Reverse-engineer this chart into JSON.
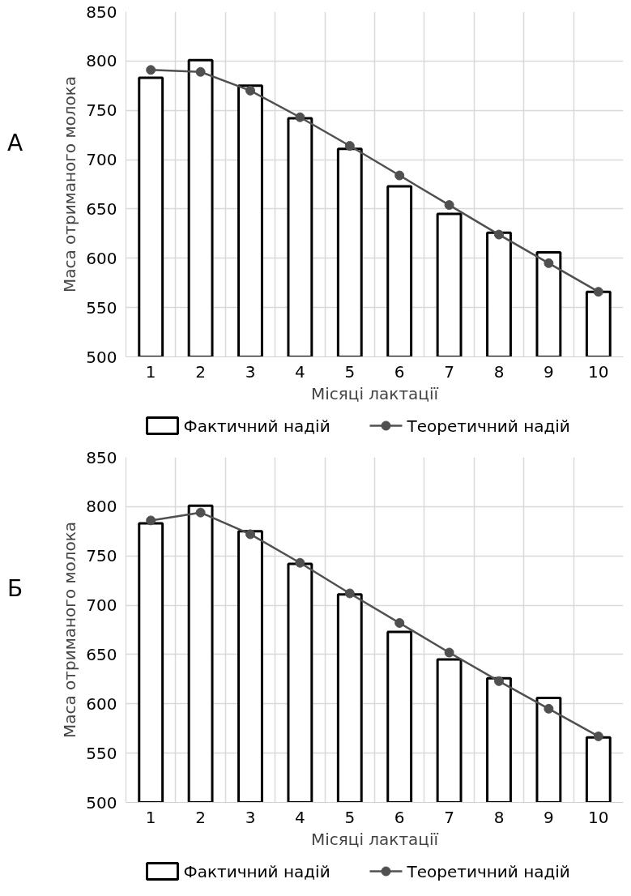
{
  "chart_data": [
    {
      "type": "bar",
      "title": "А",
      "xlabel": "Місяці лактації",
      "ylabel": "Маса отриманого молока",
      "categories": [
        "1",
        "2",
        "3",
        "4",
        "5",
        "6",
        "7",
        "8",
        "9",
        "10"
      ],
      "ylim": [
        500,
        850
      ],
      "yticks": [
        500,
        550,
        600,
        650,
        700,
        750,
        800,
        850
      ],
      "grid": true,
      "legend": "bottom",
      "series": [
        {
          "name": "Фактичний надій",
          "color": "#ffffff",
          "values": [
            783,
            801,
            775,
            742,
            711,
            673,
            645,
            626,
            606,
            566
          ]
        },
        {
          "name": "Теоретичний надій",
          "type": "line",
          "marker": "circle",
          "color": "#505050",
          "values": [
            791,
            789,
            770,
            743,
            714,
            684,
            654,
            624,
            595,
            566
          ]
        }
      ]
    },
    {
      "type": "bar",
      "title": "Б",
      "xlabel": "Місяці лактації",
      "ylabel": "Маса отриманого молока",
      "categories": [
        "1",
        "2",
        "3",
        "4",
        "5",
        "6",
        "7",
        "8",
        "9",
        "10"
      ],
      "ylim": [
        500,
        850
      ],
      "yticks": [
        500,
        550,
        600,
        650,
        700,
        750,
        800,
        850
      ],
      "grid": true,
      "legend": "bottom",
      "series": [
        {
          "name": "Фактичний надій",
          "color": "#ffffff",
          "values": [
            783,
            801,
            775,
            742,
            711,
            673,
            645,
            626,
            606,
            566
          ]
        },
        {
          "name": "Теоретичний надій",
          "type": "line",
          "marker": "circle",
          "color": "#505050",
          "values": [
            786,
            794,
            772,
            743,
            712,
            682,
            652,
            623,
            595,
            567
          ]
        }
      ]
    }
  ]
}
